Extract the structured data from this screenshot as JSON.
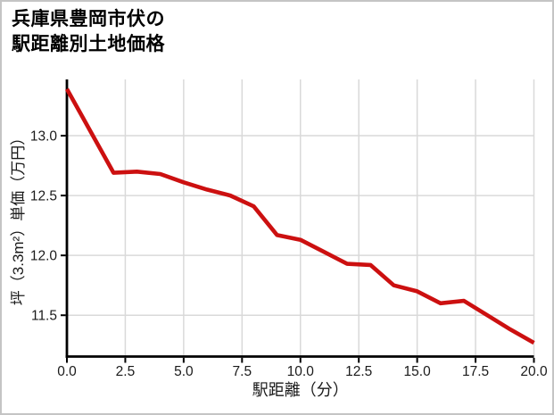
{
  "figure": {
    "title_lines": [
      "兵庫県豊岡市伏の",
      "駅距離別土地価格"
    ]
  },
  "chart_data": {
    "type": "line",
    "title": "兵庫県豊岡市伏の駅距離別土地価格",
    "xlabel": "駅距離（分）",
    "ylabel": "坪（3.3m²）単価（万円）",
    "series": [
      {
        "name": "駅距離別土地価格",
        "x": [
          0,
          1,
          2,
          3,
          4,
          5,
          6,
          7,
          8,
          9,
          10,
          11,
          12,
          13,
          14,
          15,
          16,
          17,
          18,
          19,
          20
        ],
        "y": [
          13.39,
          13.04,
          12.69,
          12.7,
          12.68,
          12.61,
          12.55,
          12.5,
          12.41,
          12.17,
          12.13,
          12.03,
          11.93,
          11.92,
          11.75,
          11.7,
          11.6,
          11.62,
          11.5,
          11.38,
          11.27
        ]
      }
    ],
    "xlim": [
      0,
      20
    ],
    "ylim": [
      11.155,
      13.47
    ],
    "x_ticks": {
      "values": [
        0,
        2.5,
        5,
        7.5,
        10,
        12.5,
        15,
        17.5,
        20
      ],
      "labels": [
        "0.0",
        "2.5",
        "5.0",
        "7.5",
        "10.0",
        "12.5",
        "15.0",
        "17.5",
        "20.0"
      ]
    },
    "y_ticks": {
      "values": [
        11.5,
        12.0,
        12.5,
        13.0
      ],
      "labels": [
        "11.5",
        "12.0",
        "12.5",
        "13.0"
      ]
    },
    "grid": true,
    "legend": "none",
    "colors": {
      "line": "#cc1010",
      "grid": "#d9d9d9",
      "axis": "#000000",
      "tick_text": "#1a1a1a",
      "border": "#c4c4c4",
      "background": "#ffffff"
    }
  }
}
